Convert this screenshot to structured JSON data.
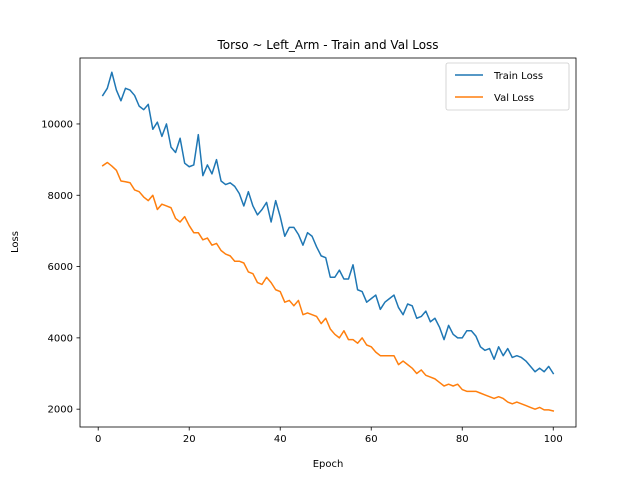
{
  "chart_data": {
    "type": "line",
    "title": "Torso ~ Left_Arm - Train and Val Loss",
    "xlabel": "Epoch",
    "ylabel": "Loss",
    "xlim": [
      -4,
      105
    ],
    "ylim": [
      1500,
      11850
    ],
    "xticks": [
      0,
      20,
      40,
      60,
      80,
      100
    ],
    "yticks": [
      2000,
      4000,
      6000,
      8000,
      10000
    ],
    "grid": false,
    "legend_position": "top-right",
    "x": [
      1,
      2,
      3,
      4,
      5,
      6,
      7,
      8,
      9,
      10,
      11,
      12,
      13,
      14,
      15,
      16,
      17,
      18,
      19,
      20,
      21,
      22,
      23,
      24,
      25,
      26,
      27,
      28,
      29,
      30,
      31,
      32,
      33,
      34,
      35,
      36,
      37,
      38,
      39,
      40,
      41,
      42,
      43,
      44,
      45,
      46,
      47,
      48,
      49,
      50,
      51,
      52,
      53,
      54,
      55,
      56,
      57,
      58,
      59,
      60,
      61,
      62,
      63,
      64,
      65,
      66,
      67,
      68,
      69,
      70,
      71,
      72,
      73,
      74,
      75,
      76,
      77,
      78,
      79,
      80,
      81,
      82,
      83,
      84,
      85,
      86,
      87,
      88,
      89,
      90,
      91,
      92,
      93,
      94,
      95,
      96,
      97,
      98,
      99,
      100
    ],
    "series": [
      {
        "name": "Train Loss",
        "color": "#1f77b4",
        "values": [
          10800,
          11000,
          11450,
          10950,
          10650,
          11000,
          10950,
          10800,
          10500,
          10400,
          10550,
          9850,
          10050,
          9650,
          10000,
          9350,
          9200,
          9600,
          8900,
          8800,
          8850,
          9700,
          8550,
          8850,
          8600,
          9000,
          8400,
          8300,
          8350,
          8250,
          8050,
          7700,
          8100,
          7700,
          7450,
          7600,
          7800,
          7250,
          7850,
          7400,
          6850,
          7100,
          7100,
          6900,
          6600,
          6950,
          6850,
          6550,
          6300,
          6250,
          5700,
          5700,
          5900,
          5650,
          5650,
          6050,
          5350,
          5300,
          5000,
          5100,
          5200,
          4800,
          5000,
          5100,
          5200,
          4850,
          4650,
          4950,
          4900,
          4550,
          4600,
          4750,
          4450,
          4550,
          4300,
          3950,
          4350,
          4100,
          4000,
          4000,
          4200,
          4200,
          4050,
          3750,
          3650,
          3700,
          3400,
          3750,
          3500,
          3700,
          3450,
          3500,
          3450,
          3350,
          3200,
          3050,
          3150,
          3050,
          3200,
          3000
        ]
      },
      {
        "name": "Val Loss",
        "color": "#ff7f0e",
        "values": [
          8830,
          8920,
          8820,
          8700,
          8400,
          8380,
          8350,
          8150,
          8100,
          7950,
          7850,
          8000,
          7600,
          7750,
          7700,
          7650,
          7350,
          7250,
          7400,
          7150,
          6950,
          6950,
          6750,
          6800,
          6600,
          6650,
          6450,
          6350,
          6300,
          6150,
          6150,
          6100,
          5850,
          5800,
          5550,
          5500,
          5700,
          5550,
          5350,
          5300,
          5000,
          5050,
          4900,
          5050,
          4650,
          4700,
          4650,
          4600,
          4400,
          4550,
          4250,
          4100,
          4000,
          4200,
          3950,
          3950,
          3850,
          4000,
          3800,
          3750,
          3600,
          3500,
          3500,
          3500,
          3500,
          3250,
          3350,
          3250,
          3150,
          3000,
          3100,
          2950,
          2900,
          2850,
          2750,
          2650,
          2700,
          2650,
          2700,
          2550,
          2500,
          2500,
          2500,
          2450,
          2400,
          2350,
          2300,
          2350,
          2300,
          2200,
          2150,
          2200,
          2150,
          2100,
          2050,
          2000,
          2050,
          1980,
          1980,
          1950
        ]
      }
    ]
  }
}
